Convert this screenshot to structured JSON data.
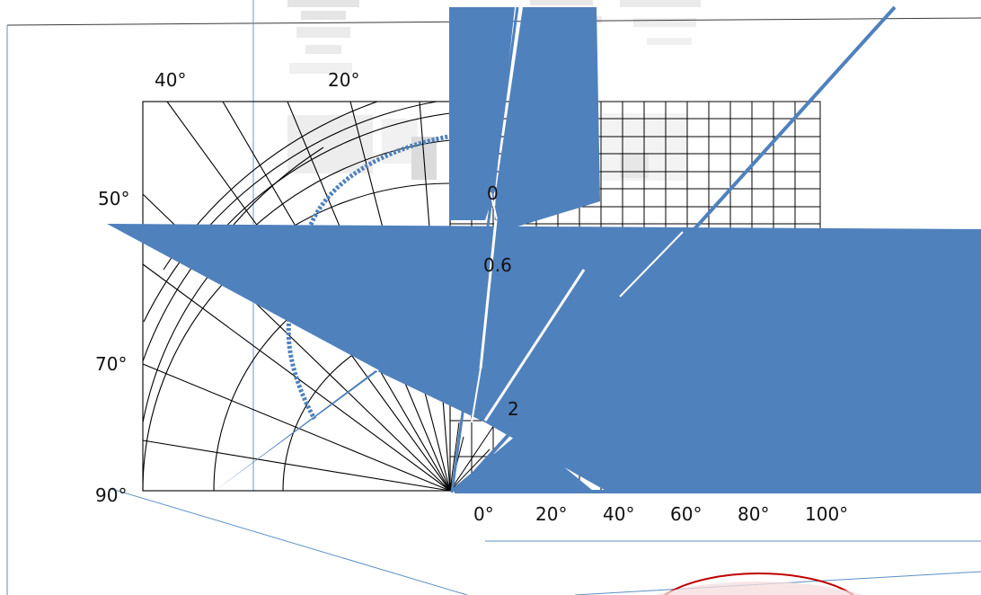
{
  "diagram": {
    "left_angle_labels": [
      "40°",
      "20°",
      "50°",
      "70°",
      "90°"
    ],
    "bottom_angle_labels": [
      "0°",
      "20°",
      "40°",
      "60°",
      "80°",
      "100°"
    ],
    "radial_labels": [
      "0",
      "0.6",
      "2"
    ],
    "colors": {
      "grid": "#000000",
      "accent": "#4f81bd",
      "thin_line": "#5b8fc7",
      "accent_red": "#c00000"
    }
  }
}
